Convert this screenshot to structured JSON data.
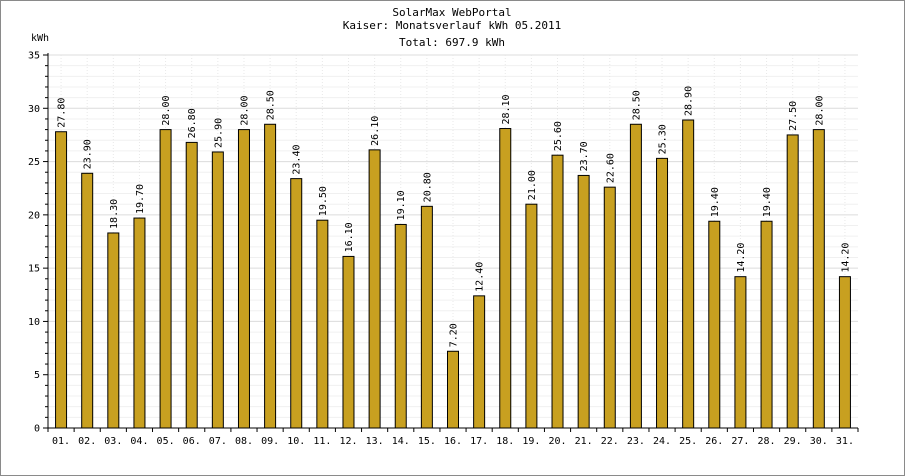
{
  "chart_data": {
    "type": "bar",
    "title": "SolarMax WebPortal",
    "subtitle": "Kaiser: Monatsverlauf kWh 05.2011",
    "total": "Total: 697.9 kWh",
    "ylabel": "kWh",
    "ylim": [
      0,
      35
    ],
    "yticks": [
      "0",
      "5",
      "10",
      "15",
      "20",
      "25",
      "30",
      "35"
    ],
    "grid": true,
    "bar_color": "#c8a020",
    "categories": [
      "01.",
      "02.",
      "03.",
      "04.",
      "05.",
      "06.",
      "07.",
      "08.",
      "09.",
      "10.",
      "11.",
      "12.",
      "13.",
      "14.",
      "15.",
      "16.",
      "17.",
      "18.",
      "19.",
      "20.",
      "21.",
      "22.",
      "23.",
      "24.",
      "25.",
      "26.",
      "27.",
      "28.",
      "29.",
      "30.",
      "31."
    ],
    "values": [
      27.8,
      23.9,
      18.3,
      19.7,
      28.0,
      26.8,
      25.9,
      28.0,
      28.5,
      23.4,
      19.5,
      16.1,
      26.1,
      19.1,
      20.8,
      7.2,
      12.4,
      28.1,
      21.0,
      25.6,
      23.7,
      22.6,
      28.5,
      25.3,
      28.9,
      19.4,
      14.2,
      19.4,
      27.5,
      28.0,
      14.2
    ],
    "value_labels": [
      "27.80",
      "23.90",
      "18.30",
      "19.70",
      "28.00",
      "26.80",
      "25.90",
      "28.00",
      "28.50",
      "23.40",
      "19.50",
      "16.10",
      "26.10",
      "19.10",
      "20.80",
      "7.20",
      "12.40",
      "28.10",
      "21.00",
      "25.60",
      "23.70",
      "22.60",
      "28.50",
      "25.30",
      "28.90",
      "19.40",
      "14.20",
      "19.40",
      "27.50",
      "28.00",
      "14.20"
    ]
  }
}
